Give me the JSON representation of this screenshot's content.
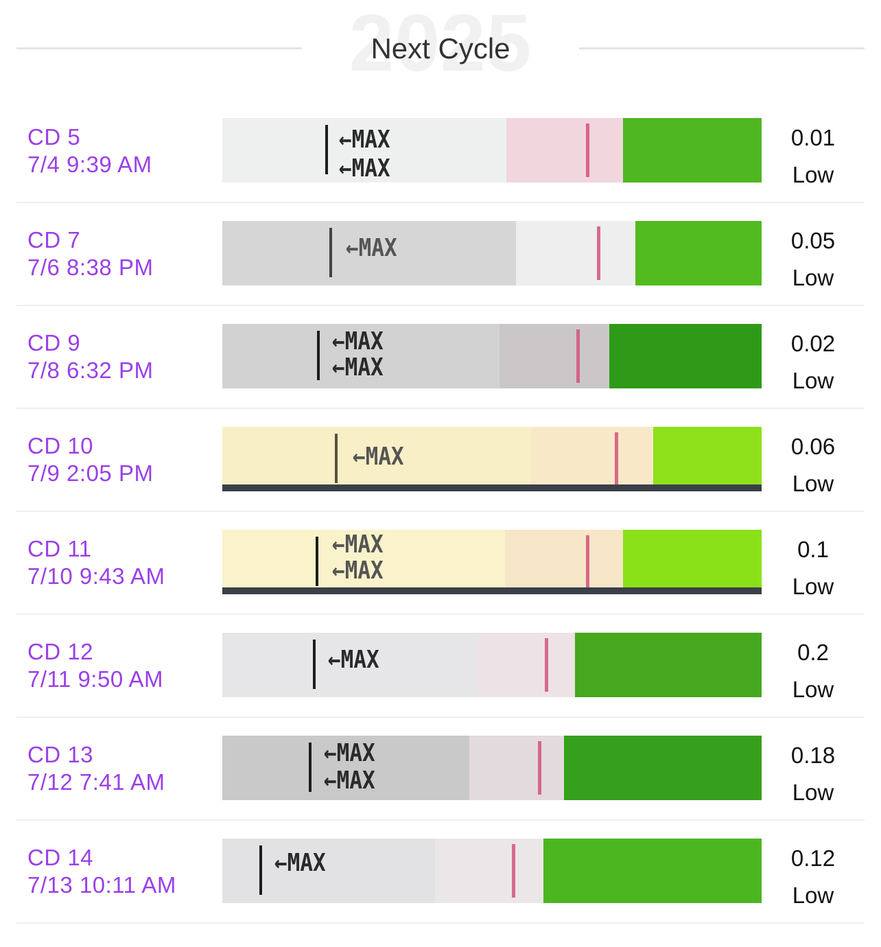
{
  "header": {
    "watermark": "2025",
    "title": "Next Cycle"
  },
  "colors": {
    "accent": "#9b40e6",
    "strip_green": "#5fc422",
    "test_line": "#d2547a"
  },
  "strip_labels": {
    "max": "MAX",
    "arrow": "←"
  },
  "rows": [
    {
      "cd": "CD 5",
      "datetime": "7/4 9:39 AM",
      "value": "0.01",
      "level": "Low"
    },
    {
      "cd": "CD 7",
      "datetime": "7/6 8:38 PM",
      "value": "0.05",
      "level": "Low"
    },
    {
      "cd": "CD 9",
      "datetime": "7/8 6:32 PM",
      "value": "0.02",
      "level": "Low"
    },
    {
      "cd": "CD 10",
      "datetime": "7/9 2:05 PM",
      "value": "0.06",
      "level": "Low"
    },
    {
      "cd": "CD 11",
      "datetime": "7/10 9:43 AM",
      "value": "0.1",
      "level": "Low"
    },
    {
      "cd": "CD 12",
      "datetime": "7/11 9:50 AM",
      "value": "0.2",
      "level": "Low"
    },
    {
      "cd": "CD 13",
      "datetime": "7/12 7:41 AM",
      "value": "0.18",
      "level": "Low"
    },
    {
      "cd": "CD 14",
      "datetime": "7/13 10:11 AM",
      "value": "0.12",
      "level": "Low"
    }
  ]
}
